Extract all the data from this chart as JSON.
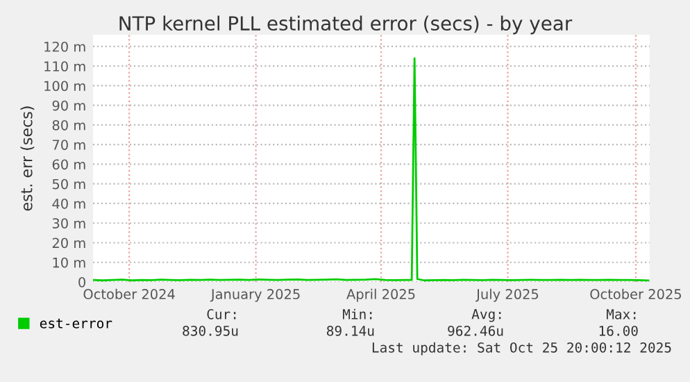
{
  "chart_data": {
    "type": "line",
    "title": "NTP kernel PLL estimated error (secs) - by year",
    "ylabel": "est. err (secs)",
    "x": [
      "2024-09-20",
      "2024-09-27",
      "2024-10-04",
      "2024-10-11",
      "2024-10-18",
      "2024-10-25",
      "2024-11-01",
      "2024-11-08",
      "2024-11-15",
      "2024-11-22",
      "2024-11-29",
      "2024-12-06",
      "2024-12-13",
      "2024-12-20",
      "2024-12-27",
      "2025-01-03",
      "2025-01-10",
      "2025-01-17",
      "2025-01-24",
      "2025-01-31",
      "2025-02-07",
      "2025-02-14",
      "2025-02-21",
      "2025-02-28",
      "2025-03-07",
      "2025-03-14",
      "2025-03-21",
      "2025-03-28",
      "2025-04-04",
      "2025-04-11",
      "2025-04-18",
      "2025-04-25",
      "2025-05-02",
      "2025-05-07",
      "2025-05-09",
      "2025-05-11",
      "2025-05-16",
      "2025-05-23",
      "2025-05-30",
      "2025-06-06",
      "2025-06-13",
      "2025-06-20",
      "2025-06-27",
      "2025-07-04",
      "2025-07-11",
      "2025-07-18",
      "2025-07-25",
      "2025-08-01",
      "2025-08-08",
      "2025-08-15",
      "2025-08-22",
      "2025-08-29",
      "2025-09-05",
      "2025-09-12",
      "2025-09-19",
      "2025-09-26",
      "2025-10-03",
      "2025-10-10",
      "2025-10-17",
      "2025-10-24"
    ],
    "series": [
      {
        "name": "est-error",
        "color": "#00cc00",
        "values": [
          1,
          0.8,
          1,
          1.2,
          0.8,
          1,
          0.9,
          1.2,
          1,
          0.9,
          1.1,
          1,
          1.2,
          1,
          1.1,
          1.2,
          1,
          1.3,
          1.1,
          1,
          1.2,
          1.3,
          1,
          1.1,
          1.2,
          1.4,
          1,
          1.1,
          1.2,
          1.5,
          1,
          0.9,
          1,
          1,
          114,
          1.5,
          0.8,
          0.9,
          1,
          0.9,
          1.1,
          1,
          0.9,
          1.1,
          1,
          0.9,
          1,
          1.1,
          1,
          1,
          1.1,
          1,
          1.1,
          1,
          1,
          1.1,
          1,
          1,
          0.9,
          0.8
        ]
      }
    ],
    "xlim": [
      "2024-09-20",
      "2025-10-25"
    ],
    "xticks": [
      {
        "value": "2024-10-16",
        "label": "October 2024"
      },
      {
        "value": "2025-01-15",
        "label": "January 2025"
      },
      {
        "value": "2025-04-15",
        "label": "April 2025"
      },
      {
        "value": "2025-07-15",
        "label": "July 2025"
      },
      {
        "value": "2025-10-15",
        "label": "October 2025"
      }
    ],
    "ylim": [
      0,
      126
    ],
    "yticks": [
      0,
      {
        "value": 10,
        "label": "10 m"
      },
      {
        "value": 20,
        "label": "20 m"
      },
      {
        "value": 30,
        "label": "30 m"
      },
      {
        "value": 40,
        "label": "40 m"
      },
      {
        "value": 50,
        "label": "50 m"
      },
      {
        "value": 60,
        "label": "60 m"
      },
      {
        "value": 70,
        "label": "70 m"
      },
      {
        "value": 80,
        "label": "80 m"
      },
      {
        "value": 90,
        "label": "90 m"
      },
      {
        "value": 100,
        "label": "100 m"
      },
      {
        "value": 110,
        "label": "110 m"
      },
      {
        "value": 120,
        "label": "120 m"
      }
    ],
    "grid": true,
    "legend": "bottom",
    "annotations": [
      "Cur:",
      "Min:",
      "Avg:",
      "Max:",
      "830.95u",
      "89.14u",
      "962.46u",
      "16.00",
      "Last update: Sat Oct 25 20:00:12 2025"
    ]
  }
}
